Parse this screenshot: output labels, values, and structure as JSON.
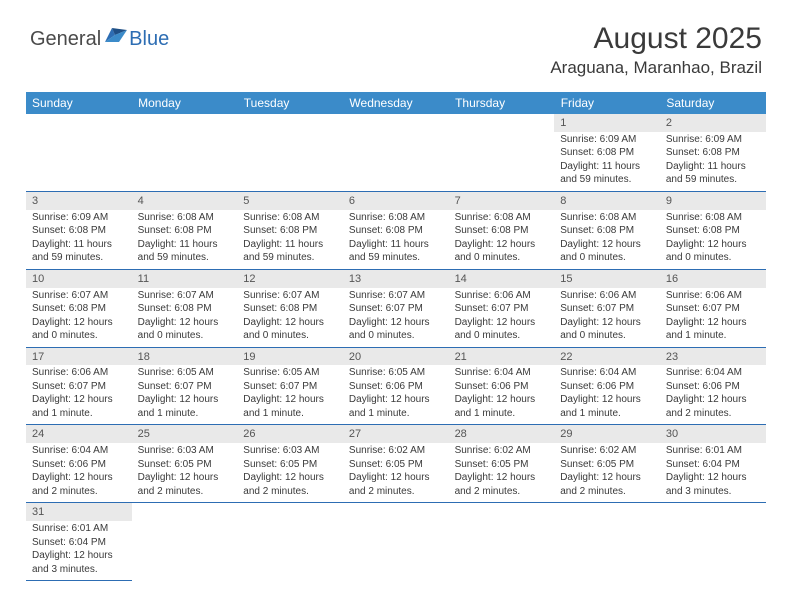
{
  "logo": {
    "text1": "General",
    "text2": "Blue"
  },
  "title": "August 2025",
  "location": "Araguana, Maranhao, Brazil",
  "colors": {
    "header_bg": "#3b8bc9",
    "row_divider": "#2d6db3",
    "daynum_bg": "#e9e9e9",
    "logo_blue": "#2d6db3"
  },
  "weekdays": [
    "Sunday",
    "Monday",
    "Tuesday",
    "Wednesday",
    "Thursday",
    "Friday",
    "Saturday"
  ],
  "weeks": [
    [
      null,
      null,
      null,
      null,
      null,
      {
        "n": "1",
        "sunrise": "Sunrise: 6:09 AM",
        "sunset": "Sunset: 6:08 PM",
        "day1": "Daylight: 11 hours",
        "day2": "and 59 minutes."
      },
      {
        "n": "2",
        "sunrise": "Sunrise: 6:09 AM",
        "sunset": "Sunset: 6:08 PM",
        "day1": "Daylight: 11 hours",
        "day2": "and 59 minutes."
      }
    ],
    [
      {
        "n": "3",
        "sunrise": "Sunrise: 6:09 AM",
        "sunset": "Sunset: 6:08 PM",
        "day1": "Daylight: 11 hours",
        "day2": "and 59 minutes."
      },
      {
        "n": "4",
        "sunrise": "Sunrise: 6:08 AM",
        "sunset": "Sunset: 6:08 PM",
        "day1": "Daylight: 11 hours",
        "day2": "and 59 minutes."
      },
      {
        "n": "5",
        "sunrise": "Sunrise: 6:08 AM",
        "sunset": "Sunset: 6:08 PM",
        "day1": "Daylight: 11 hours",
        "day2": "and 59 minutes."
      },
      {
        "n": "6",
        "sunrise": "Sunrise: 6:08 AM",
        "sunset": "Sunset: 6:08 PM",
        "day1": "Daylight: 11 hours",
        "day2": "and 59 minutes."
      },
      {
        "n": "7",
        "sunrise": "Sunrise: 6:08 AM",
        "sunset": "Sunset: 6:08 PM",
        "day1": "Daylight: 12 hours",
        "day2": "and 0 minutes."
      },
      {
        "n": "8",
        "sunrise": "Sunrise: 6:08 AM",
        "sunset": "Sunset: 6:08 PM",
        "day1": "Daylight: 12 hours",
        "day2": "and 0 minutes."
      },
      {
        "n": "9",
        "sunrise": "Sunrise: 6:08 AM",
        "sunset": "Sunset: 6:08 PM",
        "day1": "Daylight: 12 hours",
        "day2": "and 0 minutes."
      }
    ],
    [
      {
        "n": "10",
        "sunrise": "Sunrise: 6:07 AM",
        "sunset": "Sunset: 6:08 PM",
        "day1": "Daylight: 12 hours",
        "day2": "and 0 minutes."
      },
      {
        "n": "11",
        "sunrise": "Sunrise: 6:07 AM",
        "sunset": "Sunset: 6:08 PM",
        "day1": "Daylight: 12 hours",
        "day2": "and 0 minutes."
      },
      {
        "n": "12",
        "sunrise": "Sunrise: 6:07 AM",
        "sunset": "Sunset: 6:08 PM",
        "day1": "Daylight: 12 hours",
        "day2": "and 0 minutes."
      },
      {
        "n": "13",
        "sunrise": "Sunrise: 6:07 AM",
        "sunset": "Sunset: 6:07 PM",
        "day1": "Daylight: 12 hours",
        "day2": "and 0 minutes."
      },
      {
        "n": "14",
        "sunrise": "Sunrise: 6:06 AM",
        "sunset": "Sunset: 6:07 PM",
        "day1": "Daylight: 12 hours",
        "day2": "and 0 minutes."
      },
      {
        "n": "15",
        "sunrise": "Sunrise: 6:06 AM",
        "sunset": "Sunset: 6:07 PM",
        "day1": "Daylight: 12 hours",
        "day2": "and 0 minutes."
      },
      {
        "n": "16",
        "sunrise": "Sunrise: 6:06 AM",
        "sunset": "Sunset: 6:07 PM",
        "day1": "Daylight: 12 hours",
        "day2": "and 1 minute."
      }
    ],
    [
      {
        "n": "17",
        "sunrise": "Sunrise: 6:06 AM",
        "sunset": "Sunset: 6:07 PM",
        "day1": "Daylight: 12 hours",
        "day2": "and 1 minute."
      },
      {
        "n": "18",
        "sunrise": "Sunrise: 6:05 AM",
        "sunset": "Sunset: 6:07 PM",
        "day1": "Daylight: 12 hours",
        "day2": "and 1 minute."
      },
      {
        "n": "19",
        "sunrise": "Sunrise: 6:05 AM",
        "sunset": "Sunset: 6:07 PM",
        "day1": "Daylight: 12 hours",
        "day2": "and 1 minute."
      },
      {
        "n": "20",
        "sunrise": "Sunrise: 6:05 AM",
        "sunset": "Sunset: 6:06 PM",
        "day1": "Daylight: 12 hours",
        "day2": "and 1 minute."
      },
      {
        "n": "21",
        "sunrise": "Sunrise: 6:04 AM",
        "sunset": "Sunset: 6:06 PM",
        "day1": "Daylight: 12 hours",
        "day2": "and 1 minute."
      },
      {
        "n": "22",
        "sunrise": "Sunrise: 6:04 AM",
        "sunset": "Sunset: 6:06 PM",
        "day1": "Daylight: 12 hours",
        "day2": "and 1 minute."
      },
      {
        "n": "23",
        "sunrise": "Sunrise: 6:04 AM",
        "sunset": "Sunset: 6:06 PM",
        "day1": "Daylight: 12 hours",
        "day2": "and 2 minutes."
      }
    ],
    [
      {
        "n": "24",
        "sunrise": "Sunrise: 6:04 AM",
        "sunset": "Sunset: 6:06 PM",
        "day1": "Daylight: 12 hours",
        "day2": "and 2 minutes."
      },
      {
        "n": "25",
        "sunrise": "Sunrise: 6:03 AM",
        "sunset": "Sunset: 6:05 PM",
        "day1": "Daylight: 12 hours",
        "day2": "and 2 minutes."
      },
      {
        "n": "26",
        "sunrise": "Sunrise: 6:03 AM",
        "sunset": "Sunset: 6:05 PM",
        "day1": "Daylight: 12 hours",
        "day2": "and 2 minutes."
      },
      {
        "n": "27",
        "sunrise": "Sunrise: 6:02 AM",
        "sunset": "Sunset: 6:05 PM",
        "day1": "Daylight: 12 hours",
        "day2": "and 2 minutes."
      },
      {
        "n": "28",
        "sunrise": "Sunrise: 6:02 AM",
        "sunset": "Sunset: 6:05 PM",
        "day1": "Daylight: 12 hours",
        "day2": "and 2 minutes."
      },
      {
        "n": "29",
        "sunrise": "Sunrise: 6:02 AM",
        "sunset": "Sunset: 6:05 PM",
        "day1": "Daylight: 12 hours",
        "day2": "and 2 minutes."
      },
      {
        "n": "30",
        "sunrise": "Sunrise: 6:01 AM",
        "sunset": "Sunset: 6:04 PM",
        "day1": "Daylight: 12 hours",
        "day2": "and 3 minutes."
      }
    ],
    [
      {
        "n": "31",
        "sunrise": "Sunrise: 6:01 AM",
        "sunset": "Sunset: 6:04 PM",
        "day1": "Daylight: 12 hours",
        "day2": "and 3 minutes."
      },
      null,
      null,
      null,
      null,
      null,
      null
    ]
  ]
}
